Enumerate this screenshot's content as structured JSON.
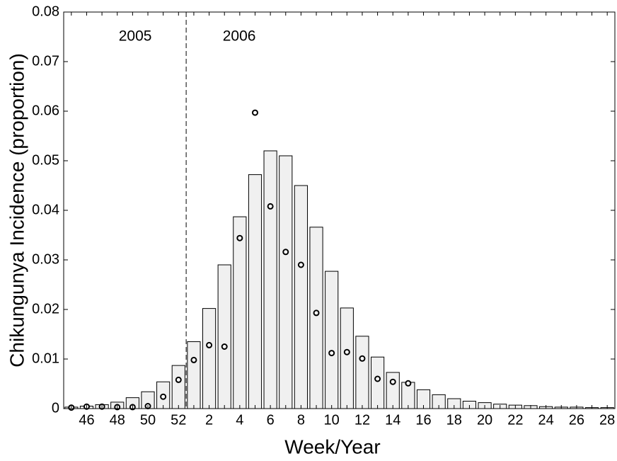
{
  "chart_data": {
    "type": "bar",
    "x_label": "Week/Year",
    "y_label": "Chikungunya Incidence (proportion)",
    "annotations": [
      "2005",
      "2006"
    ],
    "categories": [
      null,
      "46",
      null,
      "48",
      null,
      "50",
      null,
      "52",
      null,
      "2",
      null,
      "4",
      null,
      "6",
      null,
      "8",
      null,
      "10",
      null,
      "12",
      null,
      "14",
      null,
      "16",
      null,
      "18",
      null,
      "20",
      null,
      "22",
      null,
      "24",
      null,
      "26",
      null,
      "28"
    ],
    "series": [
      {
        "type": "bar",
        "color": "#f0f0f0",
        "values": [
          0.0003,
          0.0005,
          0.0008,
          0.0013,
          0.0022,
          0.0034,
          0.0054,
          0.0087,
          0.0135,
          0.0202,
          0.029,
          0.0387,
          0.0472,
          0.052,
          0.051,
          0.045,
          0.0366,
          0.0277,
          0.0203,
          0.0146,
          0.0104,
          0.0073,
          0.0053,
          0.0038,
          0.0028,
          0.002,
          0.0015,
          0.0012,
          0.0009,
          0.0007,
          0.0006,
          0.0004,
          0.0003,
          0.0003,
          0.0002,
          0.0002
        ]
      },
      {
        "type": "scatter",
        "color": "#ffffff",
        "values": [
          0.0002,
          0.0004,
          0.0004,
          0.0003,
          0.0003,
          0.0005,
          0.0024,
          0.0058,
          0.0098,
          0.0128,
          0.0125,
          0.0344,
          0.0597,
          0.0408,
          0.0316,
          0.029,
          0.0193,
          0.0112,
          0.0114,
          0.0101,
          0.006,
          0.0054,
          0.0051,
          null,
          null,
          null,
          null,
          null,
          null,
          null,
          null,
          null,
          null,
          null,
          null,
          null
        ]
      }
    ],
    "ylim": [
      0,
      0.08
    ],
    "yticks": [
      0,
      0.01,
      0.02,
      0.03,
      0.04,
      0.05,
      0.06,
      0.07,
      0.08
    ]
  }
}
